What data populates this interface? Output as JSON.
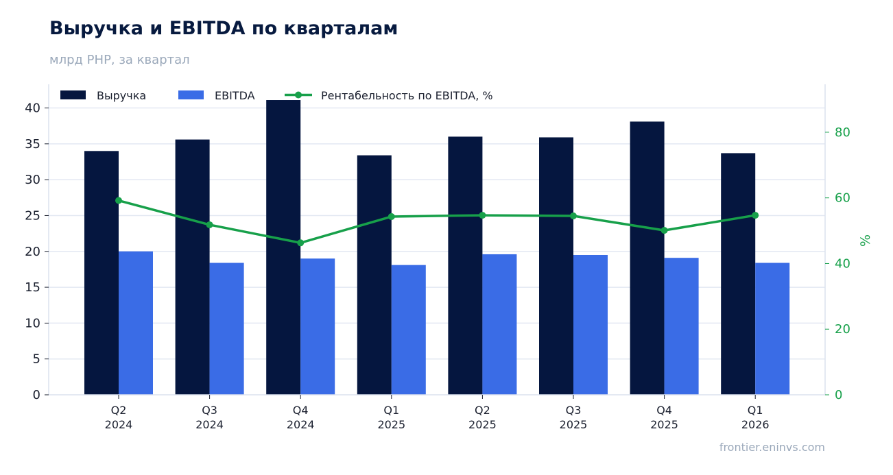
{
  "header": {
    "title": "Выручка и EBITDA по кварталам",
    "subtitle": "млрд РНР, за квартал"
  },
  "footer": {
    "source": "frontier.eninvs.com"
  },
  "colors": {
    "revenue": "#05163f",
    "ebitda": "#3a6ce6",
    "margin": "#17a04a",
    "grid": "#e3e8f2",
    "axis": "#dce2ee"
  },
  "chart_data": {
    "type": "bar",
    "categories": [
      [
        "Q2",
        "2024"
      ],
      [
        "Q3",
        "2024"
      ],
      [
        "Q4",
        "2024"
      ],
      [
        "Q1",
        "2025"
      ],
      [
        "Q2",
        "2025"
      ],
      [
        "Q3",
        "2025"
      ],
      [
        "Q4",
        "2025"
      ],
      [
        "Q1",
        "2026"
      ]
    ],
    "series": [
      {
        "name": "Выручка",
        "type": "bar",
        "axis": "left",
        "values": [
          34.0,
          35.6,
          41.1,
          33.4,
          36.0,
          35.9,
          38.1,
          33.7
        ]
      },
      {
        "name": "EBITDA",
        "type": "bar",
        "axis": "left",
        "values": [
          20.0,
          18.4,
          19.0,
          18.1,
          19.6,
          19.5,
          19.1,
          18.4
        ]
      },
      {
        "name": "Рентабельность по EBITDA, %",
        "type": "line",
        "axis": "right",
        "values": [
          59.2,
          51.8,
          46.3,
          54.3,
          54.7,
          54.5,
          50.1,
          54.7
        ]
      }
    ],
    "y_left": {
      "min": 0,
      "max": 43.3,
      "ticks": [
        0,
        5,
        10,
        15,
        20,
        25,
        30,
        35,
        40
      ]
    },
    "y_right": {
      "min": 0,
      "max": 94.6,
      "ticks": [
        0,
        20,
        40,
        60,
        80
      ],
      "label": "%"
    },
    "grid": true,
    "legend_position": "top-left"
  }
}
